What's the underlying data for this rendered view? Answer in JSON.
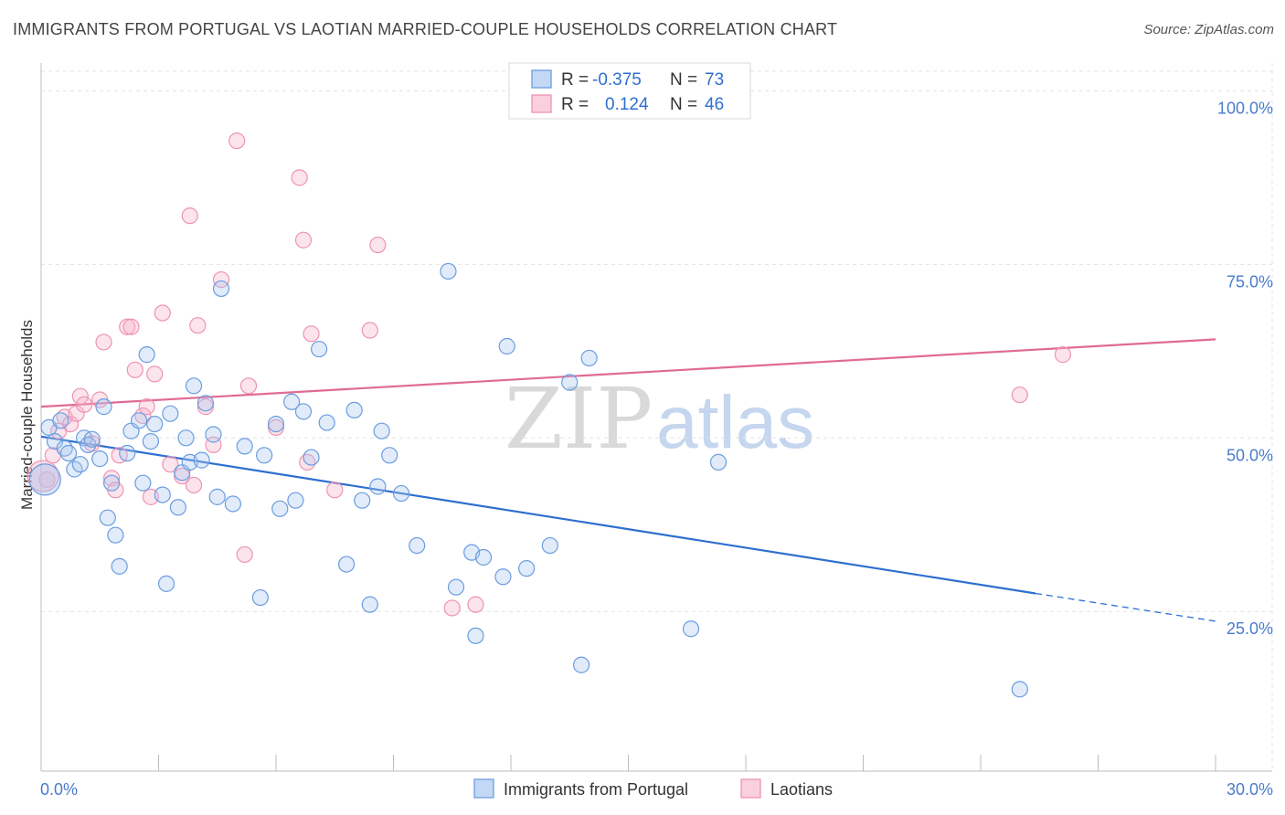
{
  "header": {
    "title": "IMMIGRANTS FROM PORTUGAL VS LAOTIAN MARRIED-COUPLE HOUSEHOLDS CORRELATION CHART",
    "source": "Source: ZipAtlas.com"
  },
  "watermark": {
    "part1": "ZIP",
    "part2": "atlas"
  },
  "legend": {
    "rows": [
      {
        "r_label": "R =",
        "r_value": "-0.375",
        "n_label": "N =",
        "n_value": "73"
      },
      {
        "r_label": "R =",
        "r_value": "0.124",
        "n_label": "N =",
        "n_value": "46"
      }
    ]
  },
  "chart_data": {
    "type": "scatter",
    "title": "IMMIGRANTS FROM PORTUGAL VS LAOTIAN MARRIED-COUPLE HOUSEHOLDS CORRELATION CHART",
    "xlabel": "",
    "ylabel": "Married-couple Households",
    "xlim": [
      0,
      30
    ],
    "ylim": [
      2,
      104
    ],
    "x_tick_labels": [
      "0.0%",
      "30.0%"
    ],
    "y_ticks": [
      25,
      50,
      75,
      100
    ],
    "y_tick_labels": [
      "25.0%",
      "50.0%",
      "75.0%",
      "100.0%"
    ],
    "grid": true,
    "legend_position": "top-center",
    "colors": {
      "portugal": "#6a9de0",
      "laotians": "#ee93b2",
      "portugal_line": "#2e6fd0",
      "laotians_line": "#e06a95"
    },
    "series": [
      {
        "name": "Immigrants from Portugal",
        "r": -0.375,
        "n": 73,
        "trend": {
          "x0": 0,
          "y0": 50.2,
          "x1": 25.4,
          "y1": 27.6,
          "dash_to_x": 30,
          "dash_to_y": 23.6
        },
        "points": [
          [
            0.2,
            51.5
          ],
          [
            0.35,
            49.5
          ],
          [
            0.5,
            52.5
          ],
          [
            0.6,
            48.5
          ],
          [
            0.7,
            47.8
          ],
          [
            0.85,
            45.5
          ],
          [
            1.0,
            46.2
          ],
          [
            1.1,
            50.0
          ],
          [
            1.2,
            49.0
          ],
          [
            1.3,
            49.8
          ],
          [
            1.5,
            47.0
          ],
          [
            1.6,
            54.5
          ],
          [
            1.7,
            38.5
          ],
          [
            1.8,
            43.5
          ],
          [
            1.9,
            36.0
          ],
          [
            2.0,
            31.5
          ],
          [
            2.2,
            47.8
          ],
          [
            2.3,
            51.0
          ],
          [
            2.5,
            52.5
          ],
          [
            2.6,
            43.5
          ],
          [
            2.7,
            62.0
          ],
          [
            2.8,
            49.5
          ],
          [
            2.9,
            52.0
          ],
          [
            3.1,
            41.8
          ],
          [
            3.2,
            29.0
          ],
          [
            3.3,
            53.5
          ],
          [
            3.5,
            40.0
          ],
          [
            3.6,
            45.0
          ],
          [
            3.7,
            50.0
          ],
          [
            3.8,
            46.5
          ],
          [
            3.9,
            57.5
          ],
          [
            4.1,
            46.8
          ],
          [
            4.2,
            55.0
          ],
          [
            4.4,
            50.5
          ],
          [
            4.5,
            41.5
          ],
          [
            4.6,
            71.5
          ],
          [
            4.9,
            40.5
          ],
          [
            5.2,
            48.8
          ],
          [
            5.6,
            27.0
          ],
          [
            5.7,
            47.5
          ],
          [
            6.0,
            52.0
          ],
          [
            6.1,
            39.8
          ],
          [
            6.4,
            55.2
          ],
          [
            6.5,
            41.0
          ],
          [
            6.7,
            53.8
          ],
          [
            6.9,
            47.2
          ],
          [
            7.1,
            62.8
          ],
          [
            7.3,
            52.2
          ],
          [
            7.8,
            31.8
          ],
          [
            8.0,
            54.0
          ],
          [
            8.2,
            41.0
          ],
          [
            8.4,
            26.0
          ],
          [
            8.6,
            43.0
          ],
          [
            8.7,
            51.0
          ],
          [
            8.9,
            47.5
          ],
          [
            9.2,
            42.0
          ],
          [
            9.6,
            34.5
          ],
          [
            10.4,
            74.0
          ],
          [
            10.6,
            28.5
          ],
          [
            11.0,
            33.5
          ],
          [
            11.1,
            21.5
          ],
          [
            11.3,
            32.8
          ],
          [
            11.8,
            30.0
          ],
          [
            11.9,
            63.2
          ],
          [
            12.4,
            31.2
          ],
          [
            13.0,
            34.5
          ],
          [
            13.5,
            58.0
          ],
          [
            13.8,
            17.3
          ],
          [
            14.0,
            61.5
          ],
          [
            16.6,
            22.5
          ],
          [
            17.3,
            46.5
          ],
          [
            25.0,
            13.8
          ],
          [
            0.1,
            44.0
          ]
        ]
      },
      {
        "name": "Laotians",
        "r": 0.124,
        "n": 46,
        "trend": {
          "x0": 0,
          "y0": 54.5,
          "x1": 30,
          "y1": 64.2
        },
        "points": [
          [
            0.15,
            44.0
          ],
          [
            0.3,
            47.5
          ],
          [
            0.45,
            51.0
          ],
          [
            0.6,
            53.0
          ],
          [
            0.75,
            52.0
          ],
          [
            0.9,
            53.5
          ],
          [
            1.0,
            56.0
          ],
          [
            1.1,
            54.8
          ],
          [
            1.3,
            49.2
          ],
          [
            1.5,
            55.5
          ],
          [
            1.6,
            63.8
          ],
          [
            1.8,
            44.2
          ],
          [
            1.9,
            42.5
          ],
          [
            2.0,
            47.5
          ],
          [
            2.2,
            66.0
          ],
          [
            2.3,
            66.0
          ],
          [
            2.4,
            59.8
          ],
          [
            2.6,
            53.2
          ],
          [
            2.7,
            54.5
          ],
          [
            2.8,
            41.5
          ],
          [
            2.9,
            59.2
          ],
          [
            3.1,
            68.0
          ],
          [
            3.3,
            46.2
          ],
          [
            3.6,
            44.5
          ],
          [
            3.8,
            82.0
          ],
          [
            3.9,
            43.2
          ],
          [
            4.0,
            66.2
          ],
          [
            4.2,
            54.5
          ],
          [
            4.4,
            49.0
          ],
          [
            4.6,
            72.8
          ],
          [
            5.0,
            92.8
          ],
          [
            5.2,
            33.2
          ],
          [
            5.3,
            57.5
          ],
          [
            6.0,
            51.5
          ],
          [
            6.6,
            87.5
          ],
          [
            6.7,
            78.5
          ],
          [
            6.8,
            46.5
          ],
          [
            6.9,
            65.0
          ],
          [
            7.5,
            42.5
          ],
          [
            8.4,
            65.5
          ],
          [
            8.6,
            77.8
          ],
          [
            10.5,
            25.5
          ],
          [
            11.1,
            26.0
          ],
          [
            25.0,
            56.2
          ],
          [
            26.1,
            62.0
          ],
          [
            0.05,
            44.5
          ]
        ]
      }
    ]
  }
}
